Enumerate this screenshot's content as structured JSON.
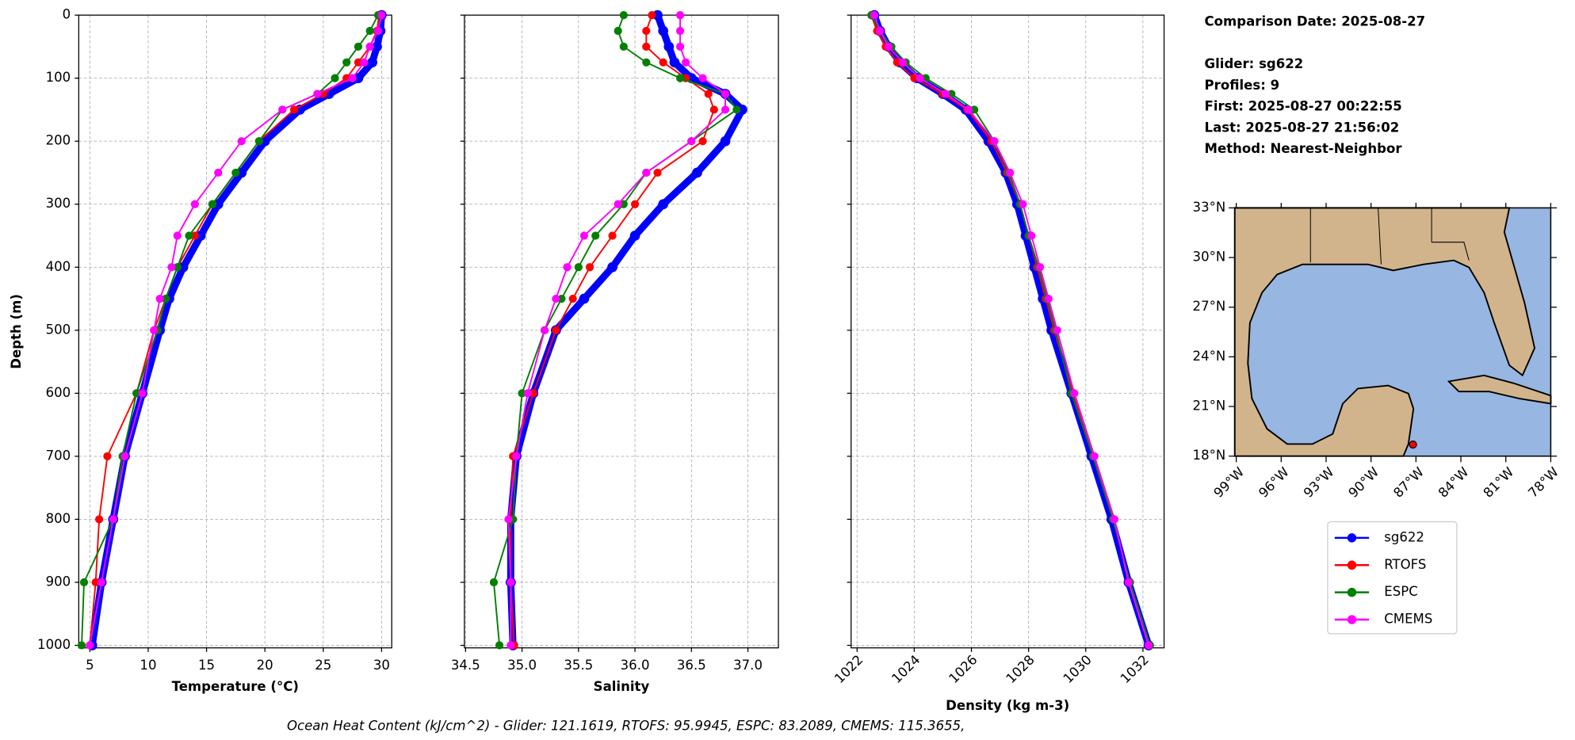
{
  "chart_data": [
    {
      "type": "line",
      "x_label": "Temperature (°C)",
      "y_label": "Depth (m)",
      "y": [
        0,
        25,
        50,
        75,
        100,
        125,
        150,
        200,
        250,
        300,
        350,
        400,
        450,
        500,
        600,
        700,
        800,
        900,
        1000
      ],
      "xlim": [
        4.05,
        30.87
      ],
      "xticks": [
        5,
        10,
        15,
        20,
        25,
        30
      ],
      "ylim": [
        1004,
        0
      ],
      "yticks": [
        0,
        100,
        200,
        300,
        400,
        500,
        600,
        700,
        800,
        900,
        1000
      ],
      "grid": true,
      "series": [
        {
          "name": "sg622",
          "color": "#0000ff",
          "values": [
            30,
            29.9,
            29.6,
            29.2,
            28,
            25.5,
            23,
            20,
            18,
            16,
            14.5,
            13,
            11.8,
            11,
            9.5,
            8,
            7,
            6,
            5.2
          ]
        },
        {
          "name": "RTOFS",
          "color": "#ff0000",
          "values": [
            29.8,
            29.6,
            29,
            28,
            27,
            25,
            22.5,
            19.5,
            17.5,
            15.5,
            14,
            12.5,
            11.5,
            10.5,
            9,
            6.5,
            5.8,
            5.5,
            5
          ]
        },
        {
          "name": "ESPC",
          "color": "#008000",
          "values": [
            29.7,
            29,
            28,
            27,
            26,
            24.5,
            21.5,
            19.5,
            17.5,
            15.5,
            13.5,
            12.5,
            11.5,
            10.8,
            9,
            7.8,
            7,
            4.5,
            4.3
          ]
        },
        {
          "name": "CMEMS",
          "color": "#ff00ff",
          "values": [
            30,
            29.7,
            29,
            28.5,
            27.5,
            24.5,
            21.5,
            18,
            16,
            14,
            12.5,
            12,
            11,
            10.5,
            9.5,
            8,
            7,
            6,
            5
          ]
        }
      ]
    },
    {
      "type": "line",
      "x_label": "Salinity",
      "y": [
        0,
        25,
        50,
        75,
        100,
        125,
        150,
        200,
        250,
        300,
        350,
        400,
        450,
        500,
        600,
        700,
        800,
        900,
        1000
      ],
      "xlim": [
        34.49,
        37.27
      ],
      "xticks": [
        34.5,
        {
          "value": 35,
          "label": "35.0"
        },
        35.5,
        {
          "value": 36,
          "label": "36.0"
        },
        36.5,
        {
          "value": 37,
          "label": "37.0"
        }
      ],
      "ylim": [
        1004,
        0
      ],
      "yticks": [
        0,
        100,
        200,
        300,
        400,
        500,
        600,
        700,
        800,
        900,
        1000
      ],
      "grid": true,
      "series": [
        {
          "name": "sg622",
          "color": "#0000ff",
          "values": [
            36.2,
            36.25,
            36.3,
            36.35,
            36.5,
            36.8,
            36.95,
            36.8,
            36.55,
            36.25,
            36,
            35.8,
            35.55,
            35.3,
            35.1,
            34.95,
            34.9,
            34.9,
            34.92
          ]
        },
        {
          "name": "RTOFS",
          "color": "#ff0000",
          "values": [
            36.15,
            36.1,
            36.1,
            36.25,
            36.45,
            36.65,
            36.7,
            36.6,
            36.2,
            36,
            35.8,
            35.6,
            35.45,
            35.3,
            35.1,
            34.92,
            34.9,
            34.9,
            34.93
          ]
        },
        {
          "name": "ESPC",
          "color": "#008000",
          "values": [
            35.9,
            35.85,
            35.9,
            36.1,
            36.4,
            36.8,
            36.9,
            36.5,
            36.1,
            35.9,
            35.65,
            35.5,
            35.35,
            35.2,
            35,
            34.95,
            34.92,
            34.75,
            34.8
          ]
        },
        {
          "name": "CMEMS",
          "color": "#ff00ff",
          "values": [
            36.4,
            36.4,
            36.4,
            36.45,
            36.6,
            36.8,
            36.8,
            36.5,
            36.1,
            35.85,
            35.55,
            35.4,
            35.3,
            35.2,
            35.05,
            34.95,
            34.88,
            34.9,
            34.9
          ]
        }
      ]
    },
    {
      "type": "line",
      "x_label": "Density (kg m-3)",
      "xtick_rotation": 45,
      "y": [
        0,
        25,
        50,
        75,
        100,
        125,
        150,
        200,
        250,
        300,
        350,
        400,
        450,
        500,
        600,
        700,
        800,
        900,
        1000
      ],
      "xlim": [
        1021.79,
        1032.74
      ],
      "xticks": [
        1022,
        1024,
        1026,
        1028,
        1030,
        1032
      ],
      "ylim": [
        1004,
        0
      ],
      "yticks": [
        0,
        100,
        200,
        300,
        400,
        500,
        600,
        700,
        800,
        900,
        1000
      ],
      "grid": true,
      "series": [
        {
          "name": "sg622",
          "color": "#0000ff",
          "values": [
            1022.6,
            1022.8,
            1023.1,
            1023.5,
            1024.1,
            1025,
            1025.8,
            1026.6,
            1027.2,
            1027.6,
            1027.9,
            1028.2,
            1028.5,
            1028.8,
            1029.5,
            1030.2,
            1030.9,
            1031.5,
            1032.2
          ]
        },
        {
          "name": "RTOFS",
          "color": "#ff0000",
          "values": [
            1022.5,
            1022.7,
            1023,
            1023.4,
            1024,
            1025,
            1025.85,
            1026.7,
            1027.25,
            1027.7,
            1028,
            1028.3,
            1028.6,
            1028.9,
            1029.55,
            1030.3,
            1031,
            1031.5,
            1032.2
          ]
        },
        {
          "name": "ESPC",
          "color": "#008000",
          "values": [
            1022.5,
            1022.8,
            1023.2,
            1023.7,
            1024.4,
            1025.3,
            1026.1,
            1026.8,
            1027.3,
            1027.7,
            1028,
            1028.35,
            1028.65,
            1028.95,
            1029.5,
            1030.25,
            1030.95,
            1031.55,
            1032.25
          ]
        },
        {
          "name": "CMEMS",
          "color": "#ff00ff",
          "values": [
            1022.6,
            1022.8,
            1023.1,
            1023.6,
            1024.2,
            1025.1,
            1025.9,
            1026.8,
            1027.35,
            1027.8,
            1028.1,
            1028.4,
            1028.7,
            1029,
            1029.6,
            1030.3,
            1031,
            1031.5,
            1032.2
          ]
        }
      ]
    }
  ],
  "info": [
    "Comparison Date: 2025-08-27",
    "Glider: sg622",
    "Profiles: 9",
    "First: 2025-08-27 00:22:55",
    "Last: 2025-08-27 21:56:02",
    "Method: Nearest-Neighbor"
  ],
  "map": {
    "lonlim": [
      -99.1,
      -78
    ],
    "latlim": [
      18,
      33
    ],
    "lonticks": [
      {
        "value": -99,
        "label": "99°W"
      },
      {
        "value": -96,
        "label": "96°W"
      },
      {
        "value": -93,
        "label": "93°W"
      },
      {
        "value": -90,
        "label": "90°W"
      },
      {
        "value": -87,
        "label": "87°W"
      },
      {
        "value": -84,
        "label": "84°W"
      },
      {
        "value": -81,
        "label": "81°W"
      },
      {
        "value": -78,
        "label": "78°W"
      }
    ],
    "latticks": [
      {
        "value": 18,
        "label": "18°N"
      },
      {
        "value": 21,
        "label": "21°N"
      },
      {
        "value": 24,
        "label": "24°N"
      },
      {
        "value": 27,
        "label": "27°N"
      },
      {
        "value": 30,
        "label": "30°N"
      },
      {
        "value": 33,
        "label": "33°N"
      }
    ],
    "glider_position": {
      "lon": -87.2,
      "lat": 18.7
    }
  },
  "footer": "Ocean Heat Content (kJ/cm^2) - Glider: 121.1619,  RTOFS: 95.9945,  ESPC: 83.2089,  CMEMS: 115.3655,"
}
